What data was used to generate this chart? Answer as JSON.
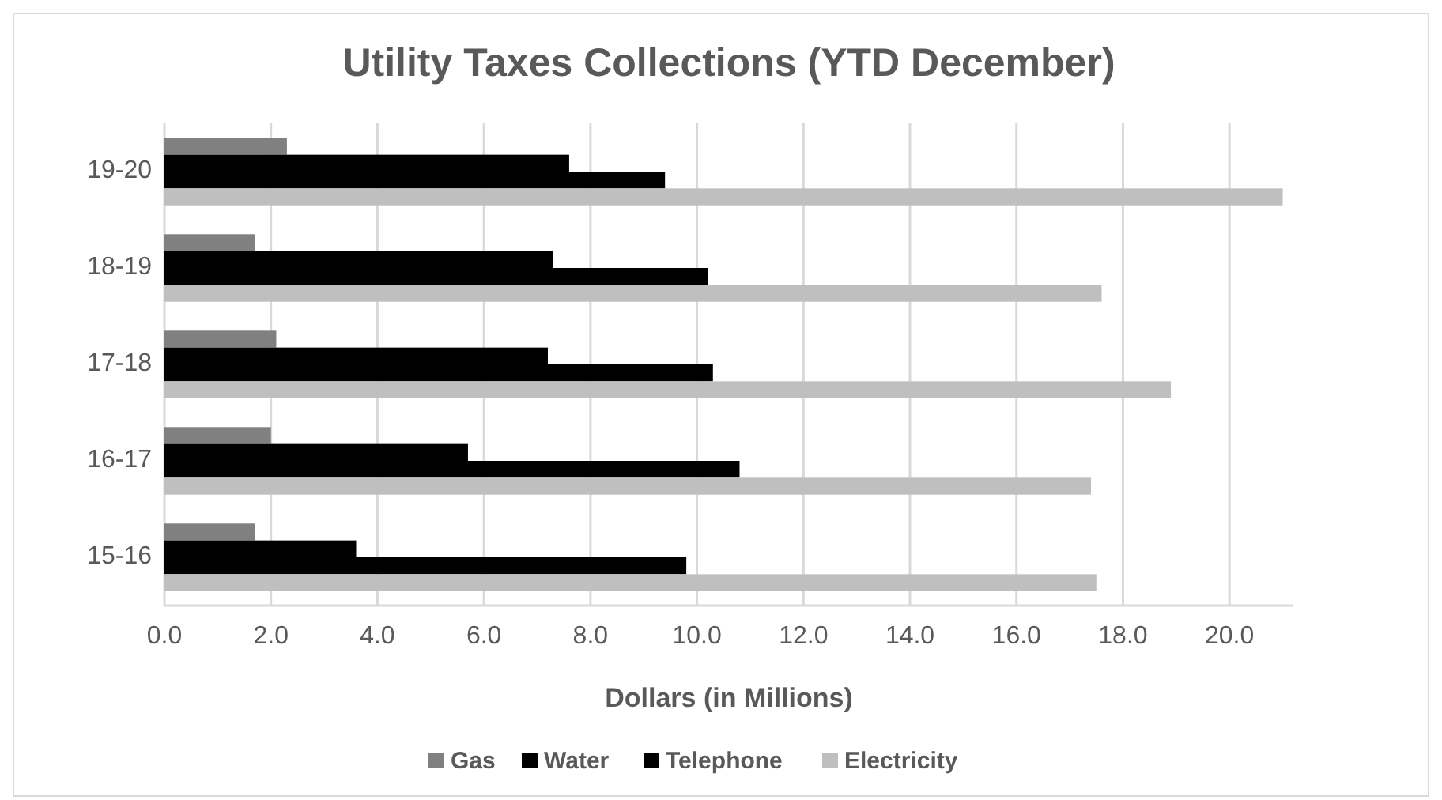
{
  "chart_data": {
    "type": "bar",
    "orientation": "horizontal",
    "title": "Utility Taxes Collections (YTD December)",
    "xlabel": "Dollars (in Millions)",
    "categories": [
      "19-20",
      "18-19",
      "17-18",
      "16-17",
      "15-16"
    ],
    "series": [
      {
        "name": "Gas",
        "color": "#808080",
        "values": [
          2.3,
          1.7,
          2.1,
          2.0,
          1.7
        ]
      },
      {
        "name": "Water",
        "color": "#000000",
        "values": [
          7.6,
          7.3,
          7.2,
          5.7,
          3.6
        ]
      },
      {
        "name": "Telephone",
        "color": "#000000",
        "values": [
          9.4,
          10.2,
          10.3,
          10.8,
          9.8
        ]
      },
      {
        "name": "Electricity",
        "color": "#bfbfbf",
        "values": [
          21.0,
          17.6,
          18.9,
          17.4,
          17.5
        ]
      }
    ],
    "xlim": [
      0,
      21.2
    ],
    "xticks": [
      {
        "value": 0,
        "label": "0.0"
      },
      {
        "value": 2,
        "label": "2.0"
      },
      {
        "value": 4,
        "label": "4.0"
      },
      {
        "value": 6,
        "label": "6.0"
      },
      {
        "value": 8,
        "label": "8.0"
      },
      {
        "value": 10,
        "label": "10.0"
      },
      {
        "value": 12,
        "label": "12.0"
      },
      {
        "value": 14,
        "label": "14.0"
      },
      {
        "value": 16,
        "label": "16.0"
      },
      {
        "value": 18,
        "label": "18.0"
      },
      {
        "value": 20,
        "label": "20.0"
      }
    ],
    "grid": "x",
    "legend": "bottom"
  }
}
